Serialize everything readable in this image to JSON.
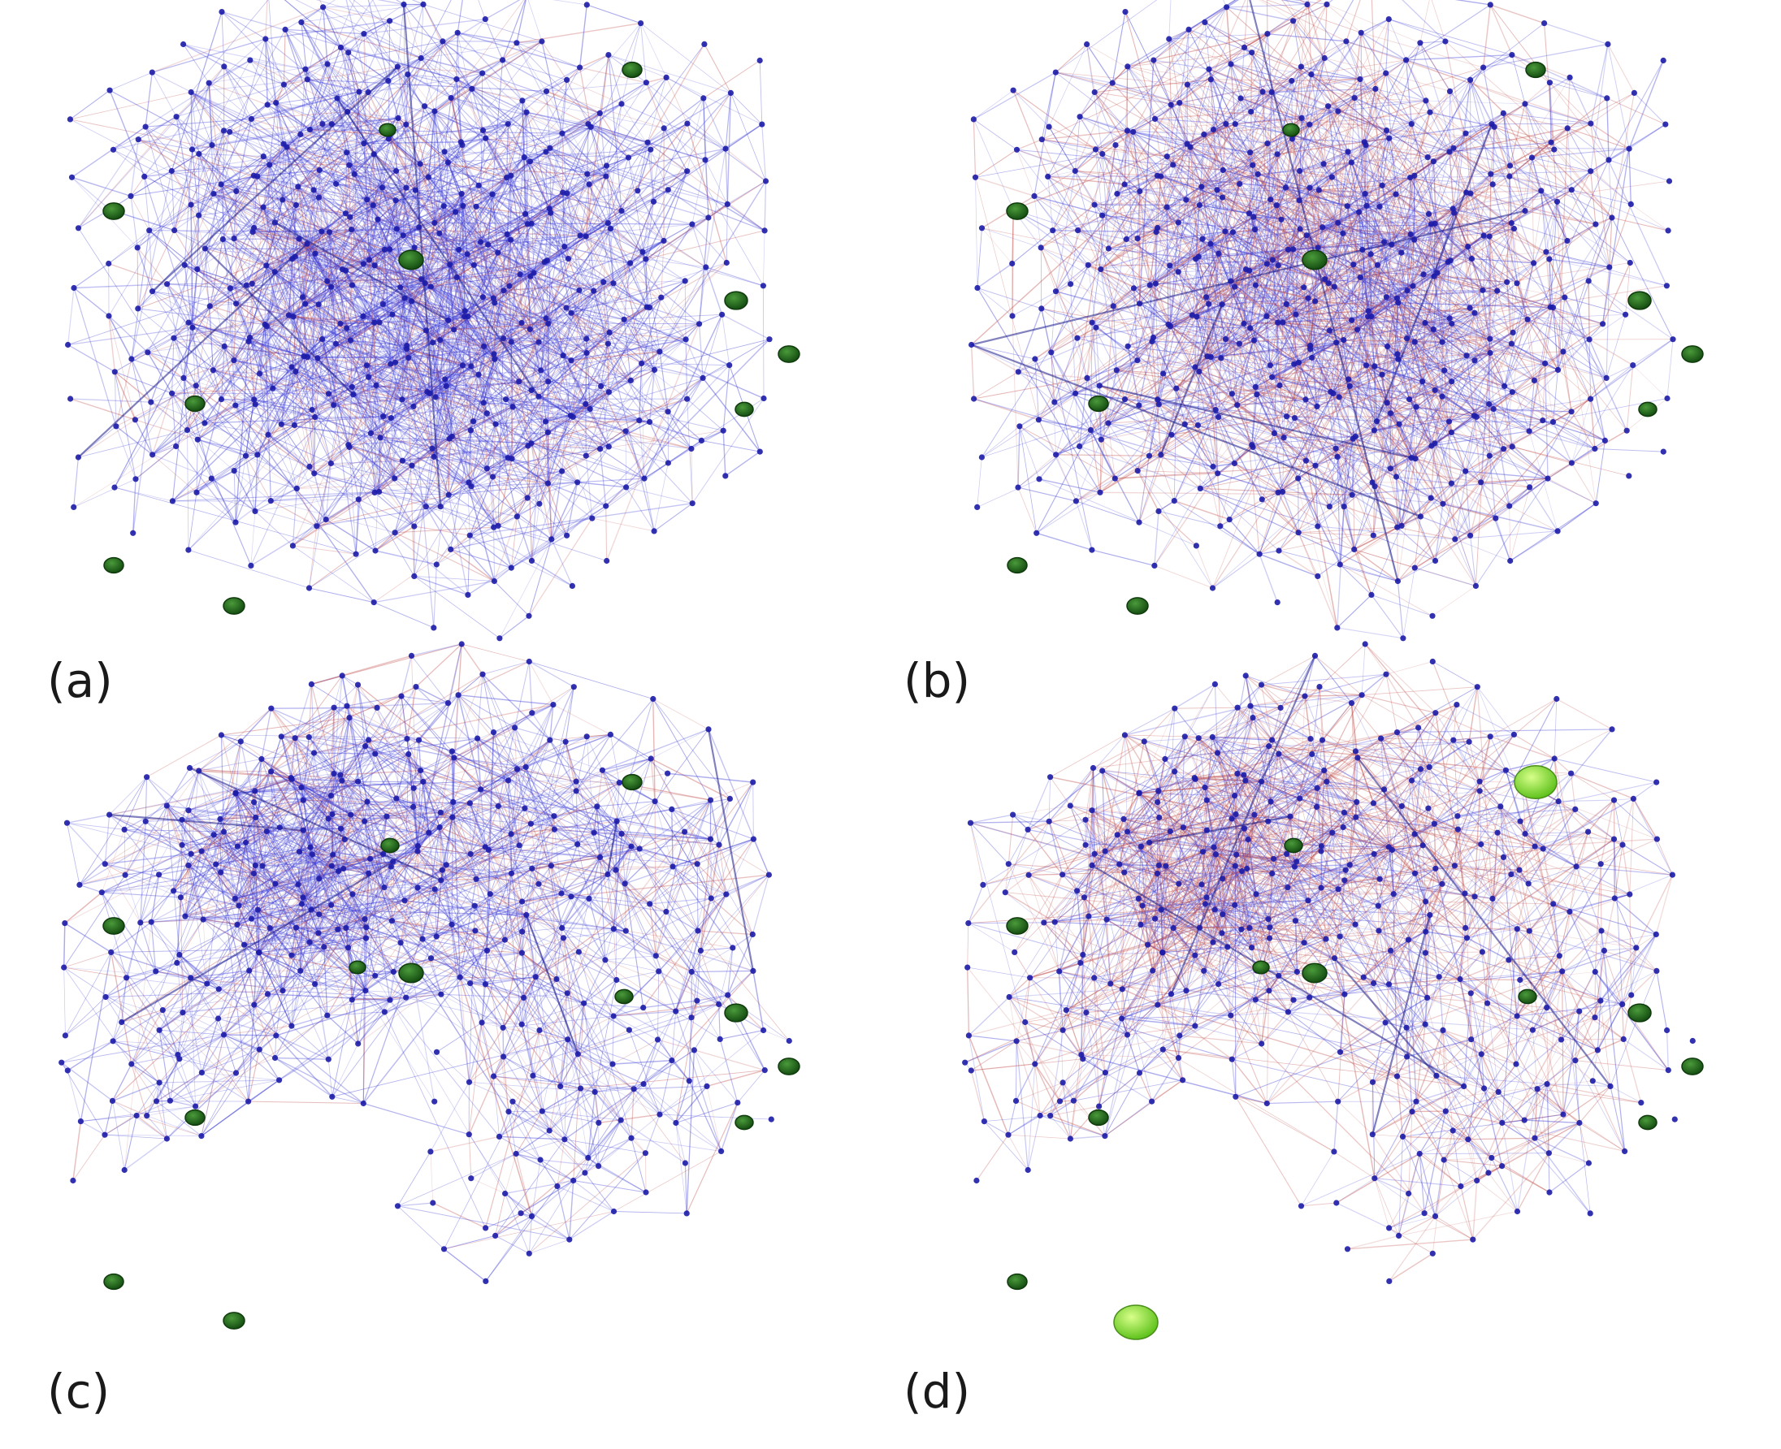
{
  "figure": {
    "panels": [
      {
        "id": "a",
        "label": "(a)",
        "network": "dense-cube",
        "edge_mix": "blue-dominant"
      },
      {
        "id": "b",
        "label": "(b)",
        "network": "dense-cube",
        "edge_mix": "red-blue"
      },
      {
        "id": "c",
        "label": "(c)",
        "network": "arch",
        "edge_mix": "blue-dominant"
      },
      {
        "id": "d",
        "label": "(d)",
        "network": "arch",
        "edge_mix": "red-dominant",
        "highlighted_nodes": 2
      }
    ],
    "colors": {
      "node": "#1c1ca8",
      "edge_blue": "#3b3bd6",
      "edge_red": "#c0504d",
      "marked_node": "#1f5e1a",
      "highlight_node": "#8fe23a"
    }
  }
}
